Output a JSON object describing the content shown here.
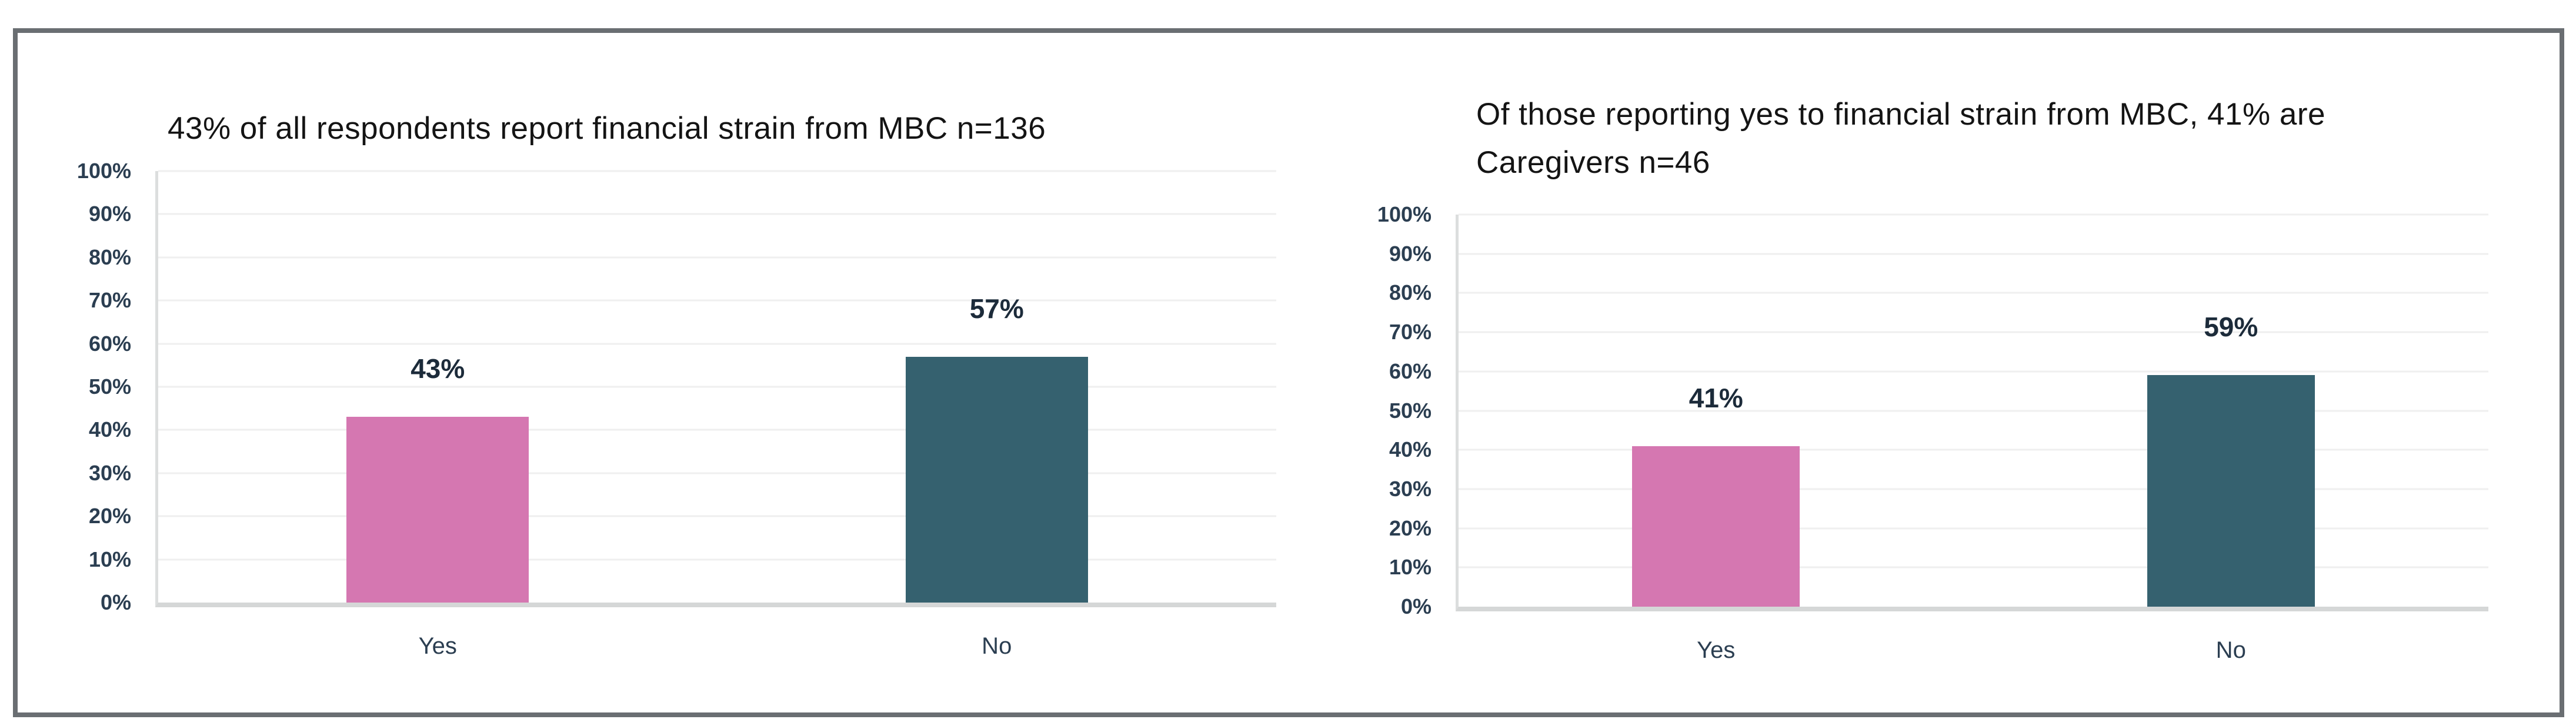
{
  "page": {
    "background": "#ffffff",
    "frame_border_color": "#6a6e72",
    "title_color": "#141414",
    "axis_text_color": "#2b3e51",
    "value_label_color": "#1c2b3a",
    "gridline_color": "#efefef",
    "axis_line_color": "#d5d7d7"
  },
  "chart_data": [
    {
      "type": "bar",
      "title": "43% of all respondents report financial strain from MBC n=136",
      "categories": [
        "Yes",
        "No"
      ],
      "values": [
        43,
        57
      ],
      "data_labels": [
        "43%",
        "57%"
      ],
      "bar_colors": [
        "#d577b1",
        "#35616f"
      ],
      "xlabel": "",
      "ylabel": "",
      "ylim": [
        0,
        100
      ],
      "ytick_step": 10,
      "ytick_labels": [
        "0%",
        "10%",
        "20%",
        "30%",
        "40%",
        "50%",
        "60%",
        "70%",
        "80%",
        "90%",
        "100%"
      ],
      "grid": true,
      "legend": "none"
    },
    {
      "type": "bar",
      "title": "Of those reporting yes to financial strain from MBC, 41% are\nCaregivers n=46",
      "categories": [
        "Yes",
        "No"
      ],
      "values": [
        41,
        59
      ],
      "data_labels": [
        "41%",
        "59%"
      ],
      "bar_colors": [
        "#d577b1",
        "#35616f"
      ],
      "xlabel": "",
      "ylabel": "",
      "ylim": [
        0,
        100
      ],
      "ytick_step": 10,
      "ytick_labels": [
        "0%",
        "10%",
        "20%",
        "30%",
        "40%",
        "50%",
        "60%",
        "70%",
        "80%",
        "90%",
        "100%"
      ],
      "grid": true,
      "legend": "none"
    }
  ]
}
